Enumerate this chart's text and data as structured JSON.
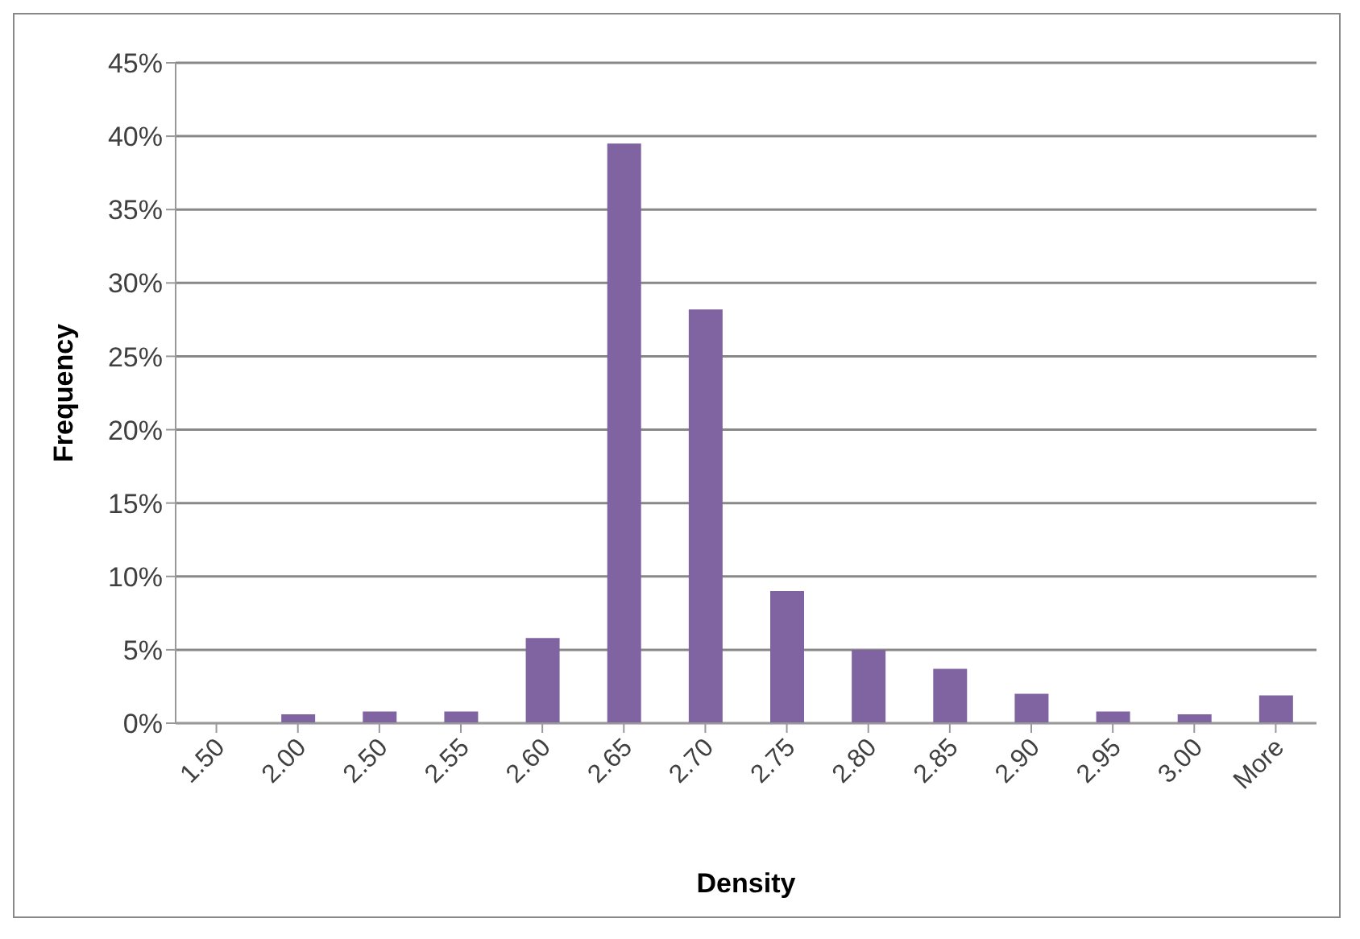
{
  "chart_data": {
    "type": "bar",
    "xlabel": "Density",
    "ylabel": "Frequency",
    "categories": [
      "1.50",
      "2.00",
      "2.50",
      "2.55",
      "2.60",
      "2.65",
      "2.70",
      "2.75",
      "2.80",
      "2.85",
      "2.90",
      "2.95",
      "3.00",
      "More"
    ],
    "values": [
      0,
      0.6,
      0.8,
      0.8,
      5.8,
      39.5,
      28.2,
      9.0,
      5.0,
      3.7,
      2.0,
      0.8,
      0.6,
      1.9
    ],
    "color": "#8064a2",
    "ylim": [
      0,
      45
    ],
    "yticks": [
      {
        "value": 0,
        "label": "0%"
      },
      {
        "value": 5,
        "label": "5%"
      },
      {
        "value": 10,
        "label": "10%"
      },
      {
        "value": 15,
        "label": "15%"
      },
      {
        "value": 20,
        "label": "20%"
      },
      {
        "value": 25,
        "label": "25%"
      },
      {
        "value": 30,
        "label": "30%"
      },
      {
        "value": 35,
        "label": "35%"
      },
      {
        "value": 40,
        "label": "40%"
      },
      {
        "value": 45,
        "label": "45%"
      }
    ],
    "grid": "y",
    "legend": false
  }
}
